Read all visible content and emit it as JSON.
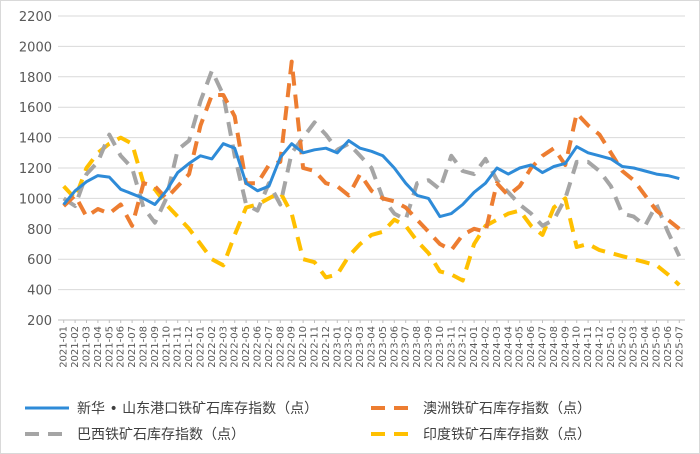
{
  "chart_data": {
    "type": "line",
    "title": "",
    "xlabel": "",
    "ylabel": "",
    "ylim": [
      200,
      2200
    ],
    "yticks": [
      200,
      400,
      600,
      800,
      1000,
      1200,
      1400,
      1600,
      1800,
      2000,
      2200
    ],
    "grid": "horizontal",
    "legend_position": "bottom",
    "x_categories": [
      "2021-01",
      "2021-02",
      "2021-03",
      "2021-04",
      "2021-05",
      "2021-06",
      "2021-07",
      "2021-08",
      "2021-09",
      "2021-10",
      "2021-11",
      "2021-12",
      "2022-01",
      "2022-02",
      "2022-03",
      "2022-04",
      "2022-05",
      "2022-06",
      "2022-07",
      "2022-08",
      "2022-09",
      "2022-10",
      "2022-11",
      "2022-12",
      "2023-01",
      "2023-02",
      "2023-03",
      "2023-04",
      "2023-05",
      "2023-06",
      "2023-07",
      "2023-08",
      "2023-09",
      "2023-10",
      "2023-11",
      "2023-12",
      "2024-01",
      "2024-02",
      "2024-03",
      "2024-04",
      "2024-05",
      "2024-06",
      "2024-07",
      "2024-08",
      "2024-09",
      "2024-10",
      "2024-11",
      "2024-12",
      "2025-01",
      "2025-02",
      "2025-03",
      "2025-04",
      "2025-05",
      "2025-06",
      "2025-07"
    ],
    "series": [
      {
        "name": "新华 • 山东港口铁矿石库存指数（点）",
        "color": "#2e8bd8",
        "dash": "solid",
        "values": [
          960,
          1050,
          1110,
          1150,
          1140,
          1060,
          1030,
          1000,
          960,
          1050,
          1170,
          1230,
          1280,
          1260,
          1360,
          1330,
          1100,
          1050,
          1080,
          1270,
          1360,
          1300,
          1320,
          1330,
          1300,
          1380,
          1330,
          1310,
          1280,
          1200,
          1100,
          1020,
          1000,
          880,
          900,
          960,
          1040,
          1100,
          1200,
          1160,
          1200,
          1220,
          1170,
          1210,
          1230,
          1340,
          1300,
          1280,
          1260,
          1210,
          1200,
          1180,
          1160,
          1150,
          1130
        ]
      },
      {
        "name": "澳洲铁矿石库存指数（点）",
        "color": "#ed7d31",
        "dash": "dash",
        "values": [
          950,
          1020,
          880,
          930,
          900,
          960,
          820,
          1100,
          1080,
          1000,
          1080,
          1160,
          1480,
          1680,
          1680,
          1540,
          1100,
          1100,
          1220,
          1240,
          1900,
          1200,
          1180,
          1100,
          1080,
          1020,
          1160,
          1050,
          1000,
          980,
          940,
          860,
          780,
          700,
          660,
          760,
          800,
          780,
          1100,
          1020,
          1080,
          1200,
          1280,
          1330,
          1220,
          1560,
          1480,
          1420,
          1300,
          1180,
          1120,
          1020,
          920,
          860,
          800
        ]
      },
      {
        "name": "巴西铁矿石库存指数（点）",
        "color": "#a5a5a5",
        "dash": "dash",
        "values": [
          1000,
          950,
          1160,
          1240,
          1420,
          1280,
          1200,
          940,
          840,
          1000,
          1320,
          1380,
          1640,
          1840,
          1680,
          1280,
          960,
          920,
          1100,
          960,
          1300,
          1400,
          1500,
          1420,
          1320,
          1360,
          1280,
          1200,
          1000,
          900,
          860,
          1100,
          1120,
          1060,
          1280,
          1180,
          1160,
          1260,
          1120,
          1040,
          960,
          900,
          820,
          860,
          1000,
          1240,
          1240,
          1180,
          1080,
          900,
          880,
          820,
          960,
          780,
          620
        ]
      },
      {
        "name": "印度铁矿石库存指数（点）",
        "color": "#ffc000",
        "dash": "dash",
        "values": [
          1080,
          1000,
          1200,
          1300,
          1360,
          1400,
          1360,
          1100,
          1060,
          960,
          880,
          800,
          700,
          600,
          560,
          760,
          940,
          960,
          1000,
          1040,
          900,
          600,
          580,
          480,
          500,
          620,
          700,
          760,
          780,
          860,
          820,
          720,
          640,
          520,
          500,
          460,
          700,
          820,
          860,
          900,
          920,
          820,
          760,
          940,
          1000,
          680,
          700,
          660,
          640,
          620,
          600,
          580,
          560,
          500,
          430
        ]
      }
    ]
  }
}
